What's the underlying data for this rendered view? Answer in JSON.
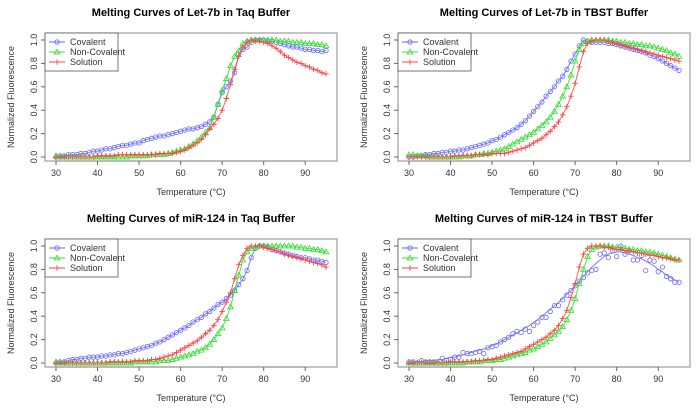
{
  "chart_data": [
    {
      "type": "line",
      "title": "Melting Curves of Let-7b in Taq Buffer",
      "xlabel": "Temperature (°C)",
      "ylabel": "Normalized Fluorescence",
      "xlim": [
        30,
        95
      ],
      "ylim": [
        0,
        1
      ],
      "xticks": [
        "30",
        "40",
        "50",
        "60",
        "70",
        "80",
        "90"
      ],
      "yticks": [
        "0.0",
        "0.2",
        "0.4",
        "0.6",
        "0.8",
        "1.0"
      ],
      "legend": "top-left",
      "x_start": 30,
      "x_step": 1,
      "series": [
        {
          "name": "Covalent",
          "color": "#6666ff",
          "marker": "circle",
          "values": [
            0.0,
            0.01,
            0.01,
            0.02,
            0.02,
            0.02,
            0.03,
            0.03,
            0.04,
            0.05,
            0.05,
            0.06,
            0.07,
            0.07,
            0.08,
            0.09,
            0.1,
            0.1,
            0.11,
            0.12,
            0.12,
            0.14,
            0.15,
            0.16,
            0.17,
            0.18,
            0.18,
            0.19,
            0.2,
            0.21,
            0.22,
            0.23,
            0.24,
            0.24,
            0.25,
            0.26,
            0.28,
            0.3,
            0.34,
            0.45,
            0.55,
            0.6,
            0.65,
            0.72,
            0.88,
            0.92,
            0.94,
            0.98,
            1.0,
            1.0,
            1.0,
            0.99,
            0.99,
            0.98,
            0.97,
            0.96,
            0.95,
            0.94,
            0.94,
            0.93,
            0.92,
            0.92,
            0.91,
            0.91,
            0.9,
            0.91
          ]
        },
        {
          "name": "Non-Covalent",
          "color": "#33dd33",
          "marker": "triangle",
          "values": [
            0.01,
            0.0,
            0.0,
            0.0,
            0.0,
            0.0,
            0.0,
            0.0,
            0.0,
            0.0,
            0.0,
            0.0,
            0.0,
            0.0,
            0.0,
            0.0,
            0.0,
            0.0,
            0.01,
            0.01,
            0.01,
            0.01,
            0.01,
            0.02,
            0.02,
            0.02,
            0.02,
            0.03,
            0.04,
            0.05,
            0.06,
            0.07,
            0.09,
            0.11,
            0.14,
            0.17,
            0.21,
            0.25,
            0.34,
            0.45,
            0.57,
            0.67,
            0.78,
            0.86,
            0.91,
            0.97,
            0.99,
            1.0,
            1.0,
            1.0,
            1.0,
            1.0,
            1.0,
            1.0,
            0.99,
            0.99,
            0.99,
            0.98,
            0.98,
            0.98,
            0.97,
            0.97,
            0.97,
            0.96,
            0.96,
            0.95
          ]
        },
        {
          "name": "Solution",
          "color": "#ff4444",
          "marker": "plus",
          "values": [
            0.0,
            0.0,
            0.0,
            0.0,
            0.0,
            0.0,
            0.0,
            0.0,
            0.0,
            0.0,
            0.01,
            0.01,
            0.01,
            0.01,
            0.01,
            0.02,
            0.02,
            0.02,
            0.02,
            0.02,
            0.02,
            0.02,
            0.02,
            0.02,
            0.02,
            0.03,
            0.03,
            0.03,
            0.03,
            0.04,
            0.05,
            0.06,
            0.08,
            0.1,
            0.12,
            0.15,
            0.19,
            0.24,
            0.28,
            0.33,
            0.4,
            0.5,
            0.62,
            0.75,
            0.86,
            0.94,
            0.98,
            1.0,
            0.99,
            0.99,
            0.98,
            0.97,
            0.95,
            0.93,
            0.9,
            0.87,
            0.85,
            0.83,
            0.81,
            0.8,
            0.78,
            0.77,
            0.75,
            0.74,
            0.72,
            0.71
          ]
        }
      ]
    },
    {
      "type": "line",
      "title": "Melting Curves of Let-7b in TBST Buffer",
      "xlabel": "Temperature (°C)",
      "ylabel": "Normalized Fluorescence",
      "xlim": [
        30,
        95
      ],
      "ylim": [
        0,
        1
      ],
      "xticks": [
        "30",
        "40",
        "50",
        "60",
        "70",
        "80",
        "90"
      ],
      "yticks": [
        "0.0",
        "0.2",
        "0.4",
        "0.6",
        "0.8",
        "1.0"
      ],
      "legend": "top-left",
      "x_start": 30,
      "x_step": 1,
      "series": [
        {
          "name": "Covalent",
          "color": "#6666ff",
          "marker": "circle",
          "values": [
            0.0,
            0.0,
            0.01,
            0.01,
            0.02,
            0.02,
            0.03,
            0.03,
            0.04,
            0.04,
            0.05,
            0.05,
            0.06,
            0.06,
            0.07,
            0.08,
            0.09,
            0.1,
            0.11,
            0.12,
            0.14,
            0.15,
            0.17,
            0.19,
            0.21,
            0.23,
            0.25,
            0.28,
            0.31,
            0.35,
            0.39,
            0.43,
            0.47,
            0.52,
            0.56,
            0.6,
            0.65,
            0.69,
            0.75,
            0.82,
            0.88,
            0.95,
            1.0,
            0.99,
            0.98,
            0.98,
            0.98,
            0.98,
            0.97,
            0.97,
            0.96,
            0.95,
            0.94,
            0.93,
            0.92,
            0.91,
            0.9,
            0.89,
            0.87,
            0.86,
            0.84,
            0.82,
            0.8,
            0.78,
            0.76,
            0.74
          ]
        },
        {
          "name": "Non-Covalent",
          "color": "#33dd33",
          "marker": "triangle",
          "values": [
            0.02,
            0.02,
            0.01,
            0.01,
            0.01,
            0.0,
            0.0,
            0.0,
            0.0,
            0.0,
            0.0,
            0.0,
            0.0,
            0.01,
            0.01,
            0.01,
            0.02,
            0.02,
            0.03,
            0.03,
            0.04,
            0.05,
            0.06,
            0.07,
            0.09,
            0.11,
            0.13,
            0.15,
            0.17,
            0.19,
            0.21,
            0.24,
            0.27,
            0.3,
            0.34,
            0.39,
            0.45,
            0.52,
            0.6,
            0.7,
            0.82,
            0.92,
            0.97,
            0.99,
            1.0,
            1.0,
            1.0,
            1.0,
            1.0,
            0.99,
            0.99,
            0.98,
            0.98,
            0.97,
            0.97,
            0.96,
            0.96,
            0.95,
            0.95,
            0.94,
            0.93,
            0.92,
            0.91,
            0.89,
            0.88,
            0.86
          ]
        },
        {
          "name": "Solution",
          "color": "#ff4444",
          "marker": "plus",
          "values": [
            0.0,
            0.0,
            0.0,
            0.0,
            0.0,
            0.0,
            0.0,
            0.0,
            0.0,
            0.0,
            0.0,
            0.01,
            0.01,
            0.01,
            0.01,
            0.01,
            0.02,
            0.02,
            0.02,
            0.02,
            0.03,
            0.03,
            0.03,
            0.03,
            0.04,
            0.05,
            0.06,
            0.07,
            0.08,
            0.1,
            0.12,
            0.14,
            0.16,
            0.19,
            0.22,
            0.26,
            0.3,
            0.36,
            0.43,
            0.52,
            0.63,
            0.77,
            0.9,
            0.97,
            0.99,
            1.0,
            1.0,
            1.0,
            0.99,
            0.98,
            0.97,
            0.96,
            0.95,
            0.94,
            0.93,
            0.92,
            0.91,
            0.9,
            0.89,
            0.88,
            0.87,
            0.86,
            0.85,
            0.84,
            0.83,
            0.82
          ]
        }
      ]
    },
    {
      "type": "line",
      "title": "Melting Curves of miR-124 in Taq Buffer",
      "xlabel": "Temperature (°C)",
      "ylabel": "Normalized Fluorescence",
      "xlim": [
        30,
        95
      ],
      "ylim": [
        0,
        1
      ],
      "xticks": [
        "30",
        "40",
        "50",
        "60",
        "70",
        "80",
        "90"
      ],
      "yticks": [
        "0.0",
        "0.2",
        "0.4",
        "0.6",
        "0.8",
        "1.0"
      ],
      "legend": "top-left",
      "x_start": 30,
      "x_step": 1,
      "series": [
        {
          "name": "Covalent",
          "color": "#6666ff",
          "marker": "circle",
          "values": [
            0.0,
            0.01,
            0.01,
            0.02,
            0.03,
            0.03,
            0.04,
            0.04,
            0.05,
            0.05,
            0.05,
            0.06,
            0.06,
            0.07,
            0.07,
            0.08,
            0.08,
            0.09,
            0.1,
            0.11,
            0.12,
            0.13,
            0.14,
            0.15,
            0.17,
            0.18,
            0.2,
            0.22,
            0.24,
            0.26,
            0.28,
            0.3,
            0.32,
            0.35,
            0.37,
            0.39,
            0.42,
            0.44,
            0.47,
            0.5,
            0.52,
            0.55,
            0.58,
            0.62,
            0.67,
            0.72,
            0.79,
            0.9,
            0.98,
            1.0,
            1.0,
            0.99,
            0.97,
            0.96,
            0.95,
            0.94,
            0.93,
            0.92,
            0.91,
            0.9,
            0.9,
            0.89,
            0.88,
            0.88,
            0.87,
            0.86
          ]
        },
        {
          "name": "Non-Covalent",
          "color": "#33dd33",
          "marker": "triangle",
          "values": [
            0.01,
            0.0,
            0.0,
            0.0,
            0.0,
            0.0,
            0.0,
            0.0,
            0.0,
            0.0,
            0.0,
            0.0,
            0.0,
            0.0,
            0.0,
            0.0,
            0.0,
            0.0,
            0.0,
            0.01,
            0.01,
            0.01,
            0.01,
            0.01,
            0.01,
            0.02,
            0.02,
            0.02,
            0.03,
            0.04,
            0.05,
            0.06,
            0.07,
            0.08,
            0.1,
            0.11,
            0.13,
            0.16,
            0.2,
            0.25,
            0.3,
            0.38,
            0.48,
            0.62,
            0.75,
            0.88,
            0.95,
            0.98,
            0.99,
            1.0,
            1.0,
            1.0,
            1.0,
            1.0,
            1.0,
            1.0,
            1.0,
            1.0,
            0.99,
            0.99,
            0.98,
            0.98,
            0.97,
            0.97,
            0.96,
            0.95
          ]
        },
        {
          "name": "Solution",
          "color": "#ff4444",
          "marker": "plus",
          "values": [
            0.0,
            0.0,
            0.0,
            0.0,
            0.0,
            0.0,
            0.0,
            0.0,
            0.0,
            0.0,
            0.0,
            0.0,
            0.0,
            0.01,
            0.01,
            0.01,
            0.01,
            0.01,
            0.01,
            0.02,
            0.02,
            0.02,
            0.02,
            0.03,
            0.03,
            0.04,
            0.05,
            0.06,
            0.07,
            0.09,
            0.11,
            0.13,
            0.15,
            0.17,
            0.19,
            0.22,
            0.25,
            0.28,
            0.32,
            0.37,
            0.44,
            0.52,
            0.6,
            0.72,
            0.84,
            0.92,
            0.98,
            1.0,
            1.0,
            1.0,
            0.99,
            0.98,
            0.97,
            0.96,
            0.95,
            0.93,
            0.92,
            0.91,
            0.9,
            0.89,
            0.88,
            0.87,
            0.86,
            0.85,
            0.84,
            0.82
          ]
        }
      ]
    },
    {
      "type": "line",
      "title": "Melting Curves of miR-124 in TBST Buffer",
      "xlabel": "Temperature (°C)",
      "ylabel": "Normalized Fluorescence",
      "xlim": [
        30,
        95
      ],
      "ylim": [
        0,
        1
      ],
      "xticks": [
        "30",
        "40",
        "50",
        "60",
        "70",
        "80",
        "90"
      ],
      "yticks": [
        "0.0",
        "0.2",
        "0.4",
        "0.6",
        "0.8",
        "1.0"
      ],
      "legend": "top-left",
      "x_start": 30,
      "x_step": 1,
      "series": [
        {
          "name": "Covalent",
          "color": "#6666ff",
          "marker": "circle",
          "line": "smooth",
          "values": [
            0.01,
            0.01,
            0.0,
            0.02,
            0.01,
            0.01,
            0.01,
            0.0,
            0.04,
            0.02,
            0.03,
            0.05,
            0.05,
            0.09,
            0.08,
            0.08,
            0.09,
            0.1,
            0.08,
            0.13,
            0.14,
            0.15,
            0.18,
            0.2,
            0.22,
            0.25,
            0.27,
            0.26,
            0.29,
            0.27,
            0.32,
            0.35,
            0.39,
            0.39,
            0.44,
            0.49,
            0.49,
            0.54,
            0.58,
            0.62,
            0.66,
            0.7,
            0.73,
            0.77,
            0.79,
            0.8,
            0.93,
            0.94,
            0.9,
            0.96,
            0.91,
            1.0,
            0.93,
            0.96,
            0.88,
            0.88,
            0.92,
            0.79,
            0.88,
            0.87,
            0.78,
            0.82,
            0.74,
            0.72,
            0.69,
            0.69
          ],
          "fit": [
            0.0,
            0.01,
            0.01,
            0.01,
            0.02,
            0.02,
            0.02,
            0.03,
            0.03,
            0.04,
            0.05,
            0.05,
            0.06,
            0.07,
            0.08,
            0.09,
            0.1,
            0.11,
            0.12,
            0.13,
            0.15,
            0.16,
            0.18,
            0.2,
            0.22,
            0.24,
            0.26,
            0.28,
            0.3,
            0.32,
            0.35,
            0.37,
            0.4,
            0.43,
            0.46,
            0.49,
            0.52,
            0.55,
            0.59,
            0.62,
            0.66,
            0.7,
            0.74,
            0.78,
            0.82,
            0.85,
            0.88,
            0.91,
            0.93,
            0.94,
            0.95,
            0.95,
            0.94,
            0.93,
            0.92,
            0.9,
            0.89,
            0.87,
            0.85,
            0.83,
            0.8,
            0.78,
            0.75,
            0.73,
            0.71,
            0.69
          ]
        },
        {
          "name": "Non-Covalent",
          "color": "#33dd33",
          "marker": "triangle",
          "values": [
            0.0,
            0.0,
            0.0,
            0.0,
            0.0,
            0.0,
            0.0,
            0.0,
            0.0,
            0.0,
            0.0,
            0.0,
            0.0,
            0.0,
            0.01,
            0.01,
            0.01,
            0.01,
            0.02,
            0.02,
            0.02,
            0.03,
            0.03,
            0.04,
            0.05,
            0.06,
            0.07,
            0.08,
            0.09,
            0.11,
            0.12,
            0.14,
            0.16,
            0.18,
            0.21,
            0.24,
            0.27,
            0.31,
            0.37,
            0.45,
            0.55,
            0.68,
            0.8,
            0.91,
            0.97,
            0.99,
            1.0,
            1.0,
            1.0,
            0.99,
            0.99,
            0.98,
            0.98,
            0.97,
            0.97,
            0.96,
            0.96,
            0.95,
            0.95,
            0.94,
            0.93,
            0.92,
            0.91,
            0.9,
            0.89,
            0.88
          ]
        },
        {
          "name": "Solution",
          "color": "#ff4444",
          "marker": "plus",
          "values": [
            0.0,
            0.0,
            0.0,
            0.0,
            0.0,
            0.0,
            0.0,
            0.0,
            0.0,
            0.0,
            0.01,
            0.01,
            0.01,
            0.01,
            0.01,
            0.01,
            0.02,
            0.02,
            0.02,
            0.03,
            0.03,
            0.04,
            0.05,
            0.06,
            0.07,
            0.08,
            0.09,
            0.1,
            0.12,
            0.14,
            0.16,
            0.18,
            0.2,
            0.22,
            0.25,
            0.28,
            0.32,
            0.38,
            0.45,
            0.56,
            0.68,
            0.82,
            0.93,
            0.98,
            1.0,
            1.0,
            1.0,
            0.99,
            0.99,
            0.98,
            0.97,
            0.97,
            0.96,
            0.96,
            0.95,
            0.94,
            0.94,
            0.93,
            0.92,
            0.92,
            0.91,
            0.9,
            0.9,
            0.89,
            0.88,
            0.88
          ]
        }
      ]
    }
  ]
}
